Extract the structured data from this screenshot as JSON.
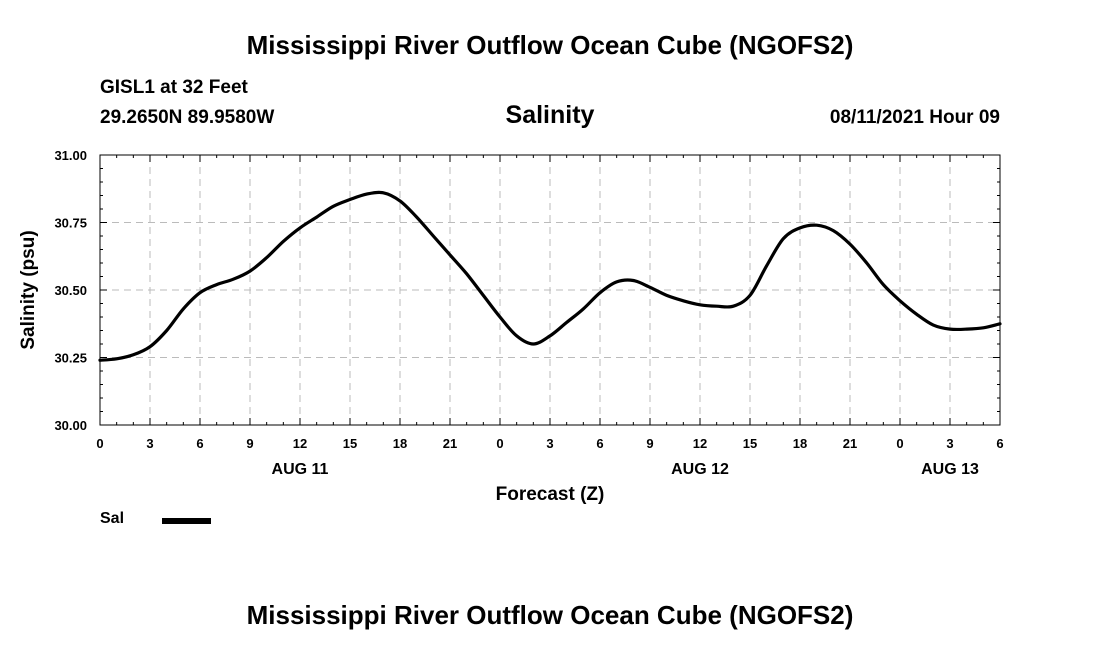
{
  "header": {
    "title": "Mississippi River Outflow Ocean Cube (NGOFS2)",
    "station": "GISL1 at 32 Feet",
    "coords": "29.2650N  89.9580W",
    "variable": "Salinity",
    "timestamp": "08/11/2021 Hour 09"
  },
  "footer": {
    "title": "Mississippi River Outflow Ocean Cube (NGOFS2)"
  },
  "legend": {
    "label": "Sal",
    "color": "#000000"
  },
  "colors": {
    "line": "#000000",
    "grid": "#bbbbbb",
    "axis": "#000000"
  },
  "chart_data": {
    "type": "line",
    "title": "Salinity",
    "xlabel": "Forecast (Z)",
    "ylabel": "Salinity (psu)",
    "xlim": [
      0,
      54
    ],
    "ylim": [
      30.0,
      31.0
    ],
    "grid": true,
    "legend_position": "bottom-left",
    "x_ticks": [
      0,
      3,
      6,
      9,
      12,
      15,
      18,
      21,
      24,
      27,
      30,
      33,
      36,
      39,
      42,
      45,
      48,
      51,
      54
    ],
    "x_tick_labels": [
      "0",
      "3",
      "6",
      "9",
      "12",
      "15",
      "18",
      "21",
      "0",
      "3",
      "6",
      "9",
      "12",
      "15",
      "18",
      "21",
      "0",
      "3",
      "6"
    ],
    "y_ticks": [
      30.0,
      30.25,
      30.5,
      30.75,
      31.0
    ],
    "y_tick_labels": [
      "30.00",
      "30.25",
      "30.50",
      "30.75",
      "31.00"
    ],
    "date_labels": [
      {
        "x": 12,
        "label": "AUG 11"
      },
      {
        "x": 36,
        "label": "AUG 12"
      },
      {
        "x": 51,
        "label": "AUG 13"
      }
    ],
    "series": [
      {
        "name": "Sal",
        "x": [
          0,
          1,
          2,
          3,
          4,
          5,
          6,
          7,
          8,
          9,
          10,
          11,
          12,
          13,
          14,
          15,
          16,
          17,
          18,
          19,
          20,
          21,
          22,
          23,
          24,
          25,
          26,
          27,
          28,
          29,
          30,
          31,
          32,
          33,
          34,
          35,
          36,
          37,
          38,
          39,
          40,
          41,
          42,
          43,
          44,
          45,
          46,
          47,
          48,
          49,
          50,
          51,
          52,
          53,
          54
        ],
        "values": [
          30.24,
          30.245,
          30.26,
          30.29,
          30.35,
          30.43,
          30.49,
          30.52,
          30.54,
          30.57,
          30.62,
          30.68,
          30.73,
          30.77,
          30.81,
          30.835,
          30.855,
          30.86,
          30.83,
          30.77,
          30.7,
          30.63,
          30.56,
          30.48,
          30.4,
          30.33,
          30.3,
          30.33,
          30.38,
          30.43,
          30.49,
          30.53,
          30.535,
          30.51,
          30.48,
          30.46,
          30.445,
          30.44,
          30.44,
          30.48,
          30.59,
          30.69,
          30.73,
          30.74,
          30.72,
          30.67,
          30.6,
          30.52,
          30.46,
          30.41,
          30.37,
          30.355,
          30.355,
          30.36,
          30.375
        ]
      }
    ]
  }
}
